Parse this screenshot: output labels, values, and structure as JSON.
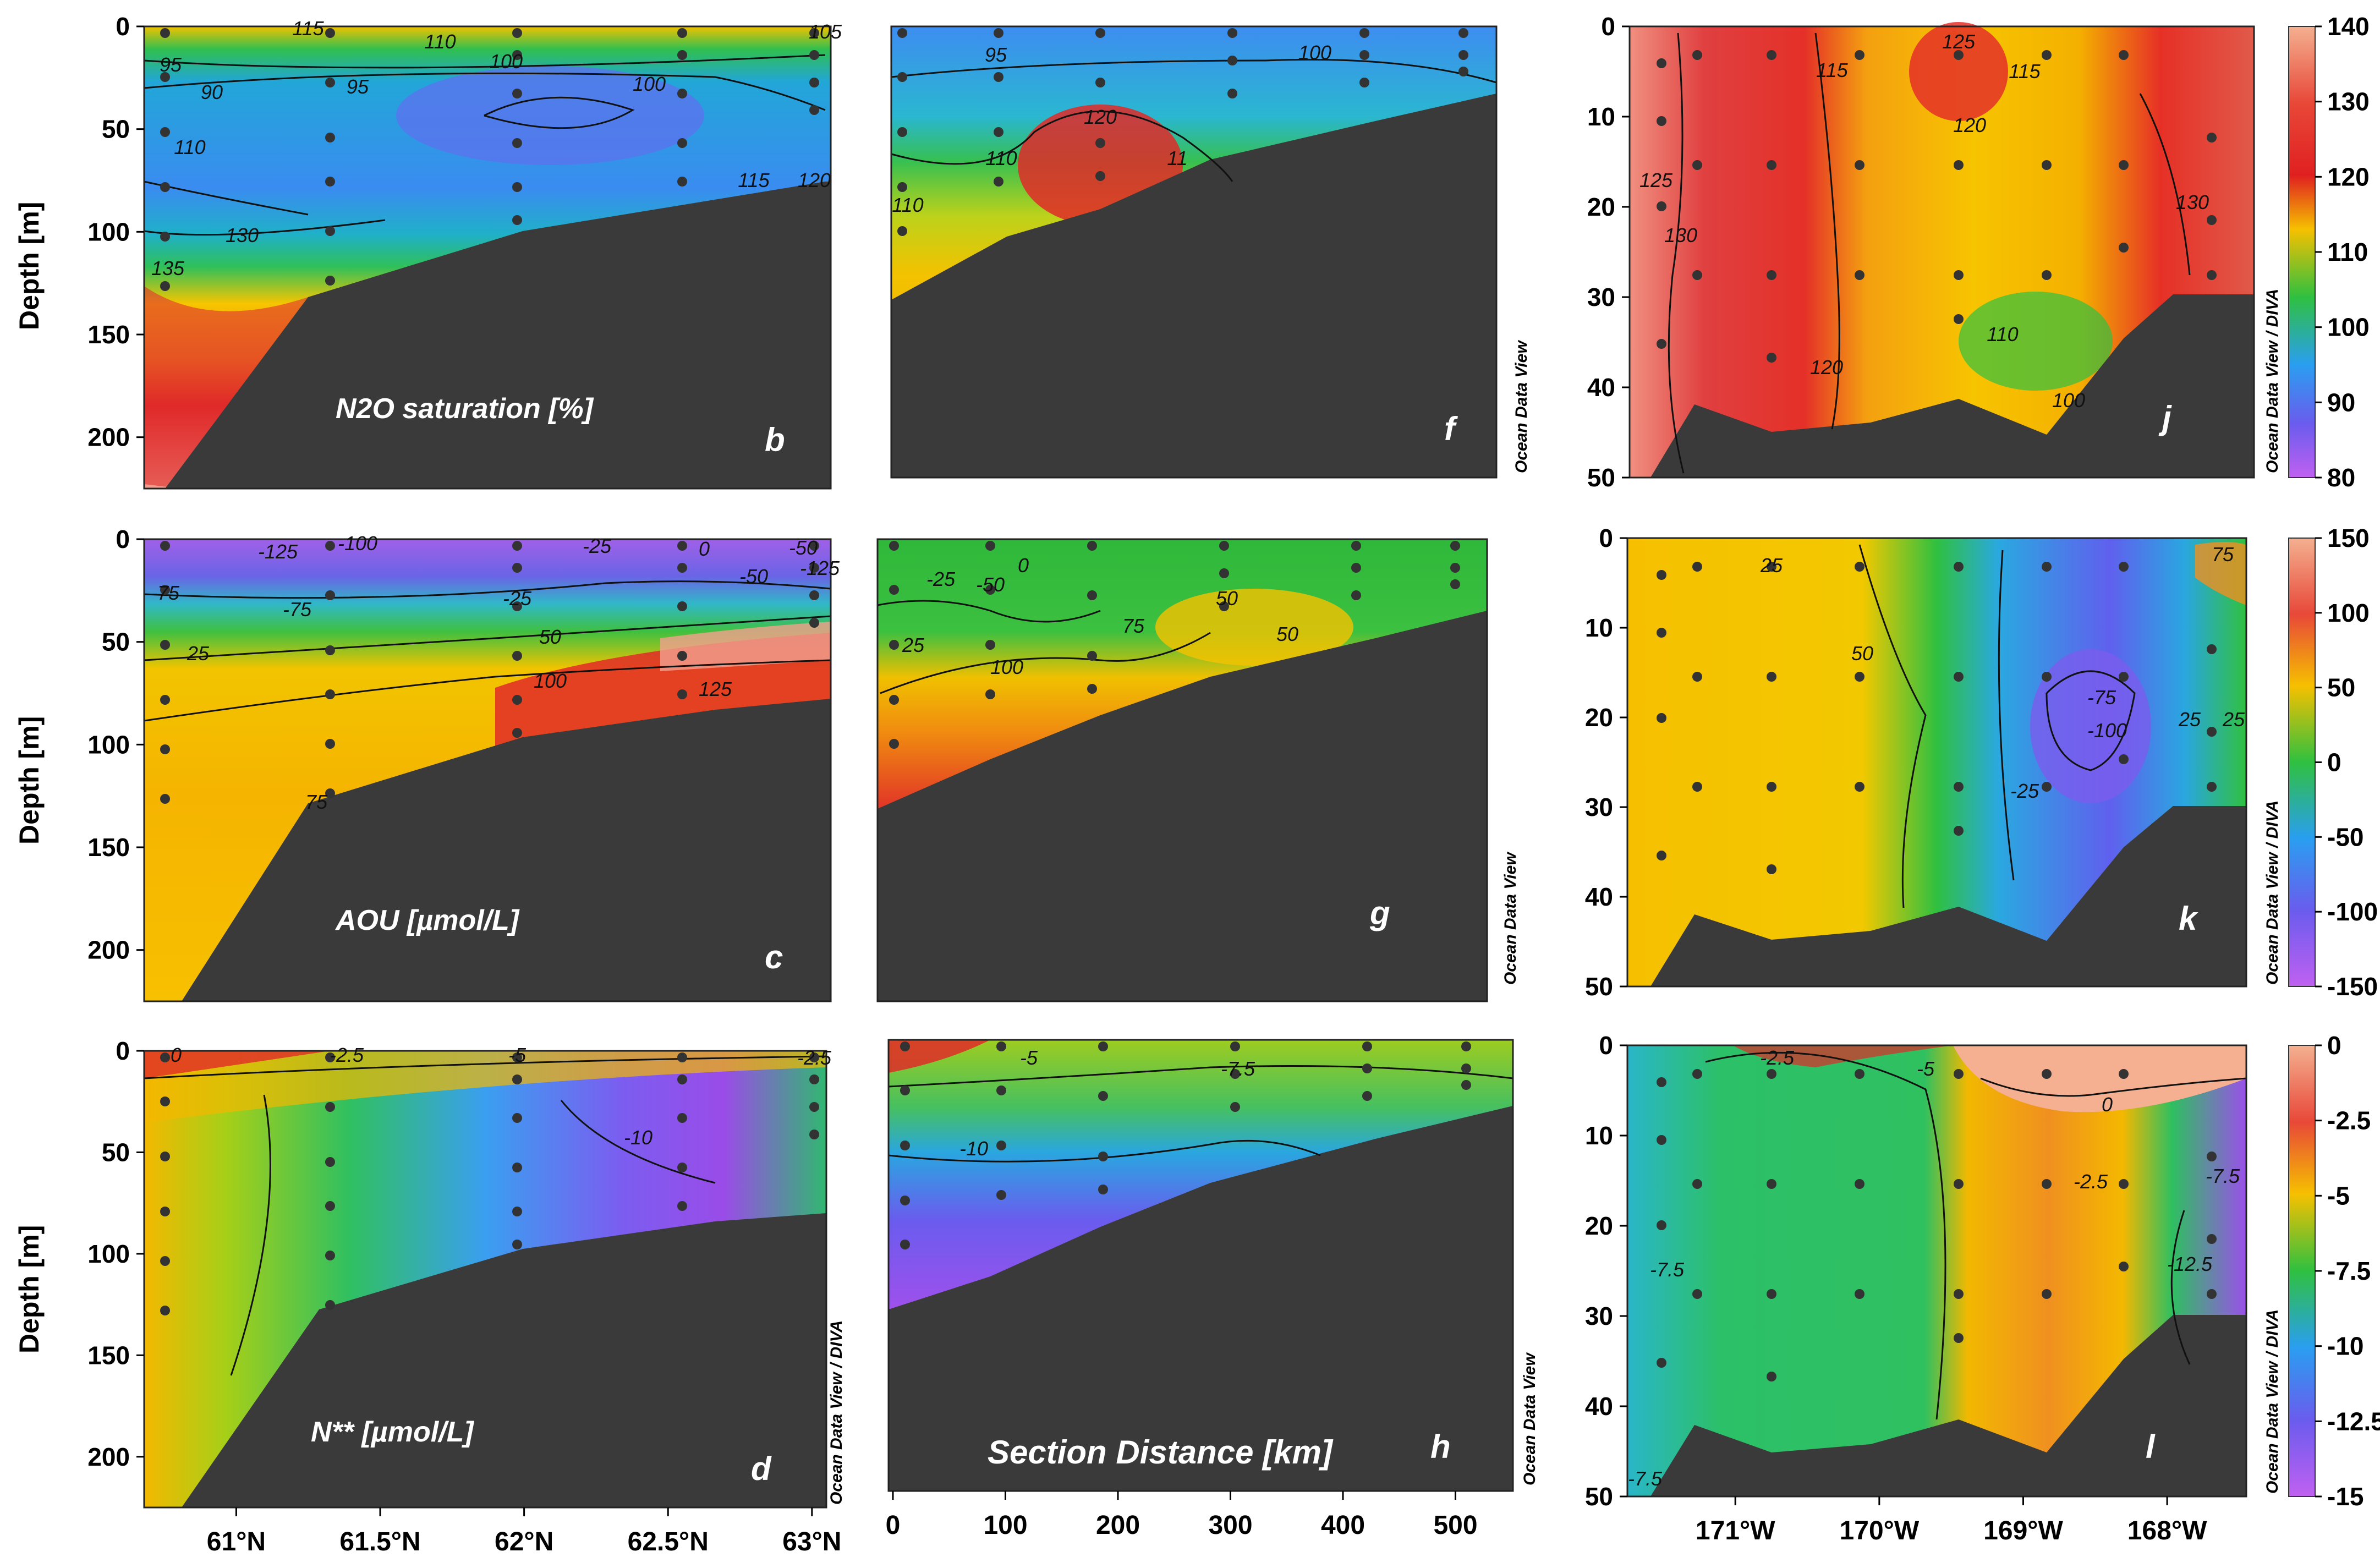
{
  "chart_data": {
    "type": "section-contour-grid",
    "ylabel": "Depth [m]",
    "depth_ticks_left": [
      "0",
      "50",
      "100",
      "150",
      "200"
    ],
    "depth_ticks_right": [
      "0",
      "10",
      "20",
      "30",
      "40",
      "50"
    ],
    "lat_ticks": [
      "61°N",
      "61.5°N",
      "62°N",
      "62.5°N",
      "63°N"
    ],
    "dist_ticks": [
      "0",
      "100",
      "200",
      "300",
      "400",
      "500"
    ],
    "lon_ticks": [
      "171°W",
      "170°W",
      "169°W",
      "168°W"
    ],
    "xlabel_mid": "Section Distance [km]",
    "credits": {
      "odv": "Ocean Data View",
      "odv_diva": "Ocean Data View / DIVA"
    },
    "colorbars": [
      {
        "ticks": [
          "140",
          "130",
          "120",
          "110",
          "100",
          "90",
          "80"
        ],
        "range": [
          80,
          140
        ]
      },
      {
        "ticks": [
          "150",
          "100",
          "50",
          "0",
          "-50",
          "-100",
          "-150"
        ],
        "range": [
          -150,
          150
        ]
      },
      {
        "ticks": [
          "0",
          "-2.5",
          "-5",
          "-7.5",
          "-10",
          "-12.5",
          "-15"
        ],
        "range": [
          -15,
          0
        ]
      }
    ],
    "rows": [
      {
        "variable": "N2O saturation [%]",
        "panels": [
          {
            "letter": "b",
            "contours": [
              "115",
              "110",
              "100",
              "105",
              "95",
              "90",
              "95",
              "100",
              "110",
              "115",
              "120",
              "130",
              "135"
            ]
          },
          {
            "letter": "f",
            "contours": [
              "95",
              "100",
              "120",
              "110",
              "11",
              "110"
            ]
          },
          {
            "letter": "j",
            "contours": [
              "125",
              "115",
              "125",
              "120",
              "115",
              "130",
              "130",
              "110",
              "120",
              "100"
            ]
          }
        ]
      },
      {
        "variable": "AOU [µmol/L]",
        "panels": [
          {
            "letter": "c",
            "contours": [
              "-125",
              "-100",
              "-25",
              "0",
              "-50",
              "-125",
              "-75",
              "-50",
              "-75",
              "-25",
              "25",
              "50",
              "100",
              "125",
              "75"
            ]
          },
          {
            "letter": "g",
            "contours": [
              "-25",
              "-50",
              "0",
              "25",
              "100",
              "75",
              "50",
              "50"
            ]
          },
          {
            "letter": "k",
            "contours": [
              "25",
              "50",
              "-25",
              "-75",
              "-100",
              "25",
              "75",
              "25"
            ]
          }
        ]
      },
      {
        "variable": "N** [µmol/L]",
        "panels": [
          {
            "letter": "d",
            "contours": [
              "0",
              "-2.5",
              "-5",
              "-2.5",
              "-10"
            ]
          },
          {
            "letter": "h",
            "contours": [
              "-5",
              "-7.5",
              "-10"
            ]
          },
          {
            "letter": "l",
            "contours": [
              "-2.5",
              "-5",
              "0",
              "-2.5",
              "-7.5",
              "-7.5",
              "-12.5",
              "-7.5"
            ]
          }
        ]
      }
    ]
  }
}
